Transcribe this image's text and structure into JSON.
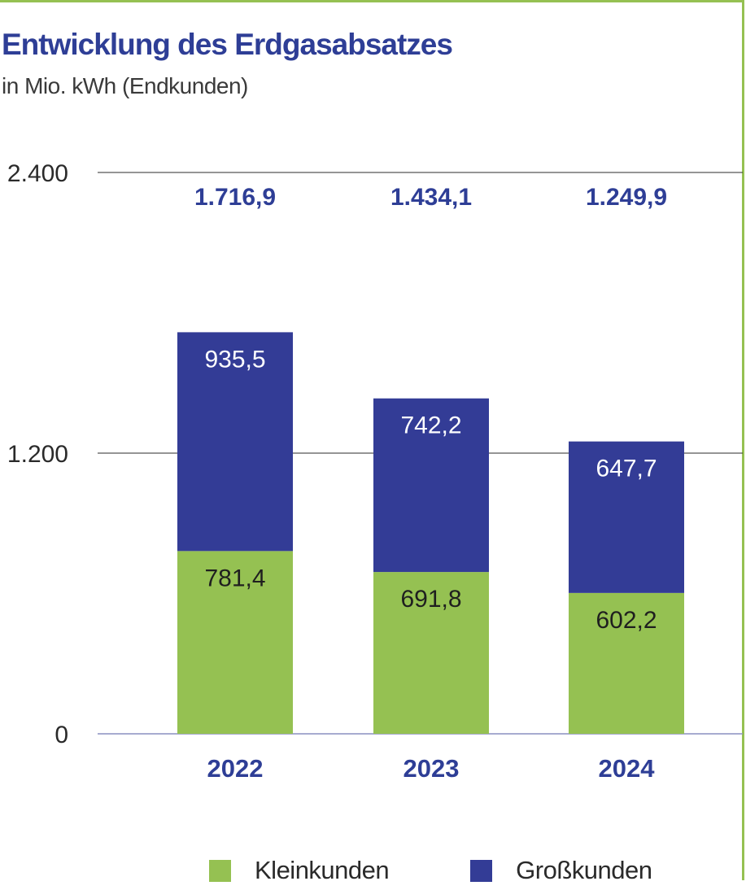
{
  "chart_data": {
    "type": "bar",
    "stacked": true,
    "title": "Entwicklung des Erdgasabsatzes",
    "subtitle": "in Mio. kWh (Endkunden)",
    "categories": [
      "2022",
      "2023",
      "2024"
    ],
    "series": [
      {
        "name": "Kleinkunden",
        "values": [
          781.4,
          691.8,
          602.2
        ],
        "value_labels": [
          "781,4",
          "691,8",
          "602,2"
        ],
        "color": "#95c152"
      },
      {
        "name": "Großkunden",
        "values": [
          935.5,
          742.2,
          647.7
        ],
        "value_labels": [
          "935,5",
          "742,2",
          "647,7"
        ],
        "color": "#333c96"
      }
    ],
    "totals": [
      1716.9,
      1434.1,
      1249.9
    ],
    "total_labels": [
      "1.716,9",
      "1.434,1",
      "1.249,9"
    ],
    "ylim": [
      0,
      2400
    ],
    "yticks": [
      0,
      1200,
      2400
    ],
    "ytick_labels": [
      "0",
      "1.200",
      "2.400"
    ],
    "grid": true,
    "legend_position": "bottom",
    "colors": {
      "accent": "#333c96",
      "frame": "#95c152",
      "title": "#2e3e96"
    }
  }
}
